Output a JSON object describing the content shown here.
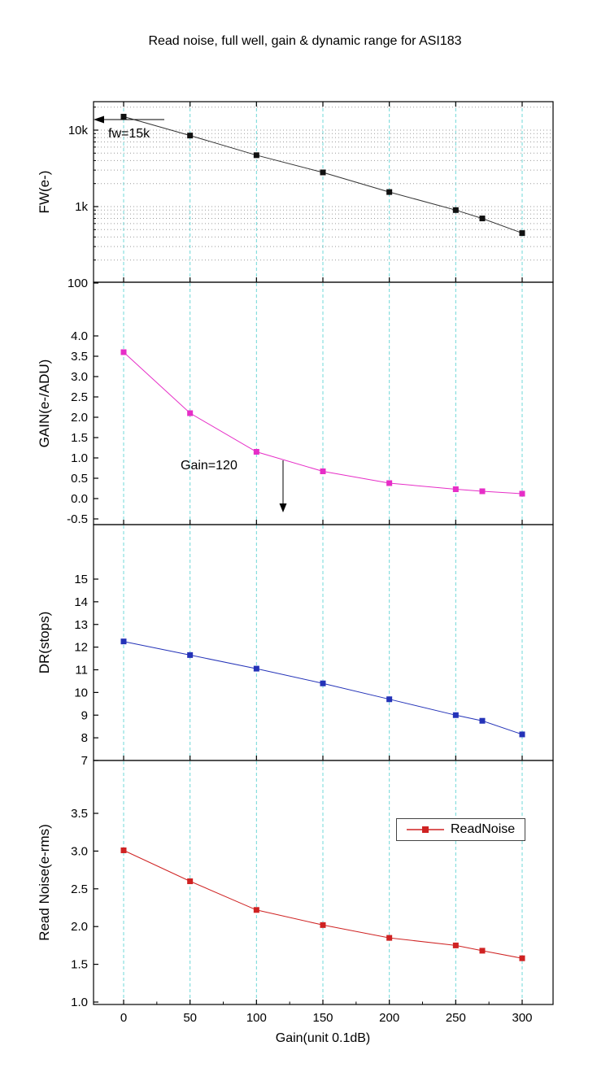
{
  "title": "Read noise, full well, gain & dynamic range for ASI183",
  "chart_data": {
    "type": "line",
    "x_label": "Gain(unit 0.1dB)",
    "x": [
      0,
      50,
      100,
      150,
      200,
      250,
      270,
      300
    ],
    "x_ticks": [
      0,
      50,
      100,
      150,
      200,
      250,
      300
    ],
    "x_minor_step": 25,
    "grid_color": "#6fd8d8",
    "log_grid_color": "#9a9a9a",
    "panels": [
      {
        "name": "full-well",
        "ylabel": "FW(e-)",
        "scale": "log",
        "color": "#111111",
        "line_color": "#333333",
        "values": [
          15000,
          8500,
          4700,
          2800,
          1550,
          900,
          700,
          450
        ],
        "ylim": [
          100,
          23000
        ],
        "yticks": [
          {
            "v": 10000,
            "label": "10k"
          },
          {
            "v": 1000,
            "label": "1k"
          },
          {
            "v": 100,
            "label": "100"
          }
        ],
        "annotation": "fw=15k"
      },
      {
        "name": "gain",
        "ylabel": "GAIN(e-/ADU)",
        "scale": "linear",
        "color": "#e62ec7",
        "line_color": "#e62ec7",
        "values": [
          3.6,
          2.1,
          1.15,
          0.67,
          0.38,
          0.23,
          0.18,
          0.12
        ],
        "ylim": [
          -0.5,
          4.0
        ],
        "yticks": [
          {
            "v": 4.0,
            "label": "4.0"
          },
          {
            "v": 3.5,
            "label": "3.5"
          },
          {
            "v": 3.0,
            "label": "3.0"
          },
          {
            "v": 2.5,
            "label": "2.5"
          },
          {
            "v": 2.0,
            "label": "2.0"
          },
          {
            "v": 1.5,
            "label": "1.5"
          },
          {
            "v": 1.0,
            "label": "1.0"
          },
          {
            "v": 0.5,
            "label": "0.5"
          },
          {
            "v": 0.0,
            "label": "0.0"
          },
          {
            "v": -0.5,
            "label": "-0.5"
          }
        ],
        "annotation": "Gain=120"
      },
      {
        "name": "dynamic-range",
        "ylabel": "DR(stops)",
        "scale": "linear",
        "color": "#2433b8",
        "line_color": "#2433b8",
        "values": [
          12.25,
          11.65,
          11.05,
          10.4,
          9.7,
          9.0,
          8.75,
          8.15
        ],
        "ylim": [
          7,
          15
        ],
        "yticks": [
          {
            "v": 15,
            "label": "15"
          },
          {
            "v": 14,
            "label": "14"
          },
          {
            "v": 13,
            "label": "13"
          },
          {
            "v": 12,
            "label": "12"
          },
          {
            "v": 11,
            "label": "11"
          },
          {
            "v": 10,
            "label": "10"
          },
          {
            "v": 9,
            "label": "9"
          },
          {
            "v": 8,
            "label": "8"
          },
          {
            "v": 7,
            "label": "7"
          }
        ]
      },
      {
        "name": "read-noise",
        "ylabel": "Read Noise(e-rms)",
        "scale": "linear",
        "color": "#cf2222",
        "line_color": "#cf2222",
        "values": [
          3.01,
          2.6,
          2.22,
          2.02,
          1.85,
          1.75,
          1.68,
          1.58
        ],
        "ylim": [
          1.0,
          3.5
        ],
        "yticks": [
          {
            "v": 3.5,
            "label": "3.5"
          },
          {
            "v": 3.0,
            "label": "3.0"
          },
          {
            "v": 2.5,
            "label": "2.5"
          },
          {
            "v": 2.0,
            "label": "2.0"
          },
          {
            "v": 1.5,
            "label": "1.5"
          },
          {
            "v": 1.0,
            "label": "1.0"
          }
        ],
        "legend": "ReadNoise"
      }
    ]
  }
}
